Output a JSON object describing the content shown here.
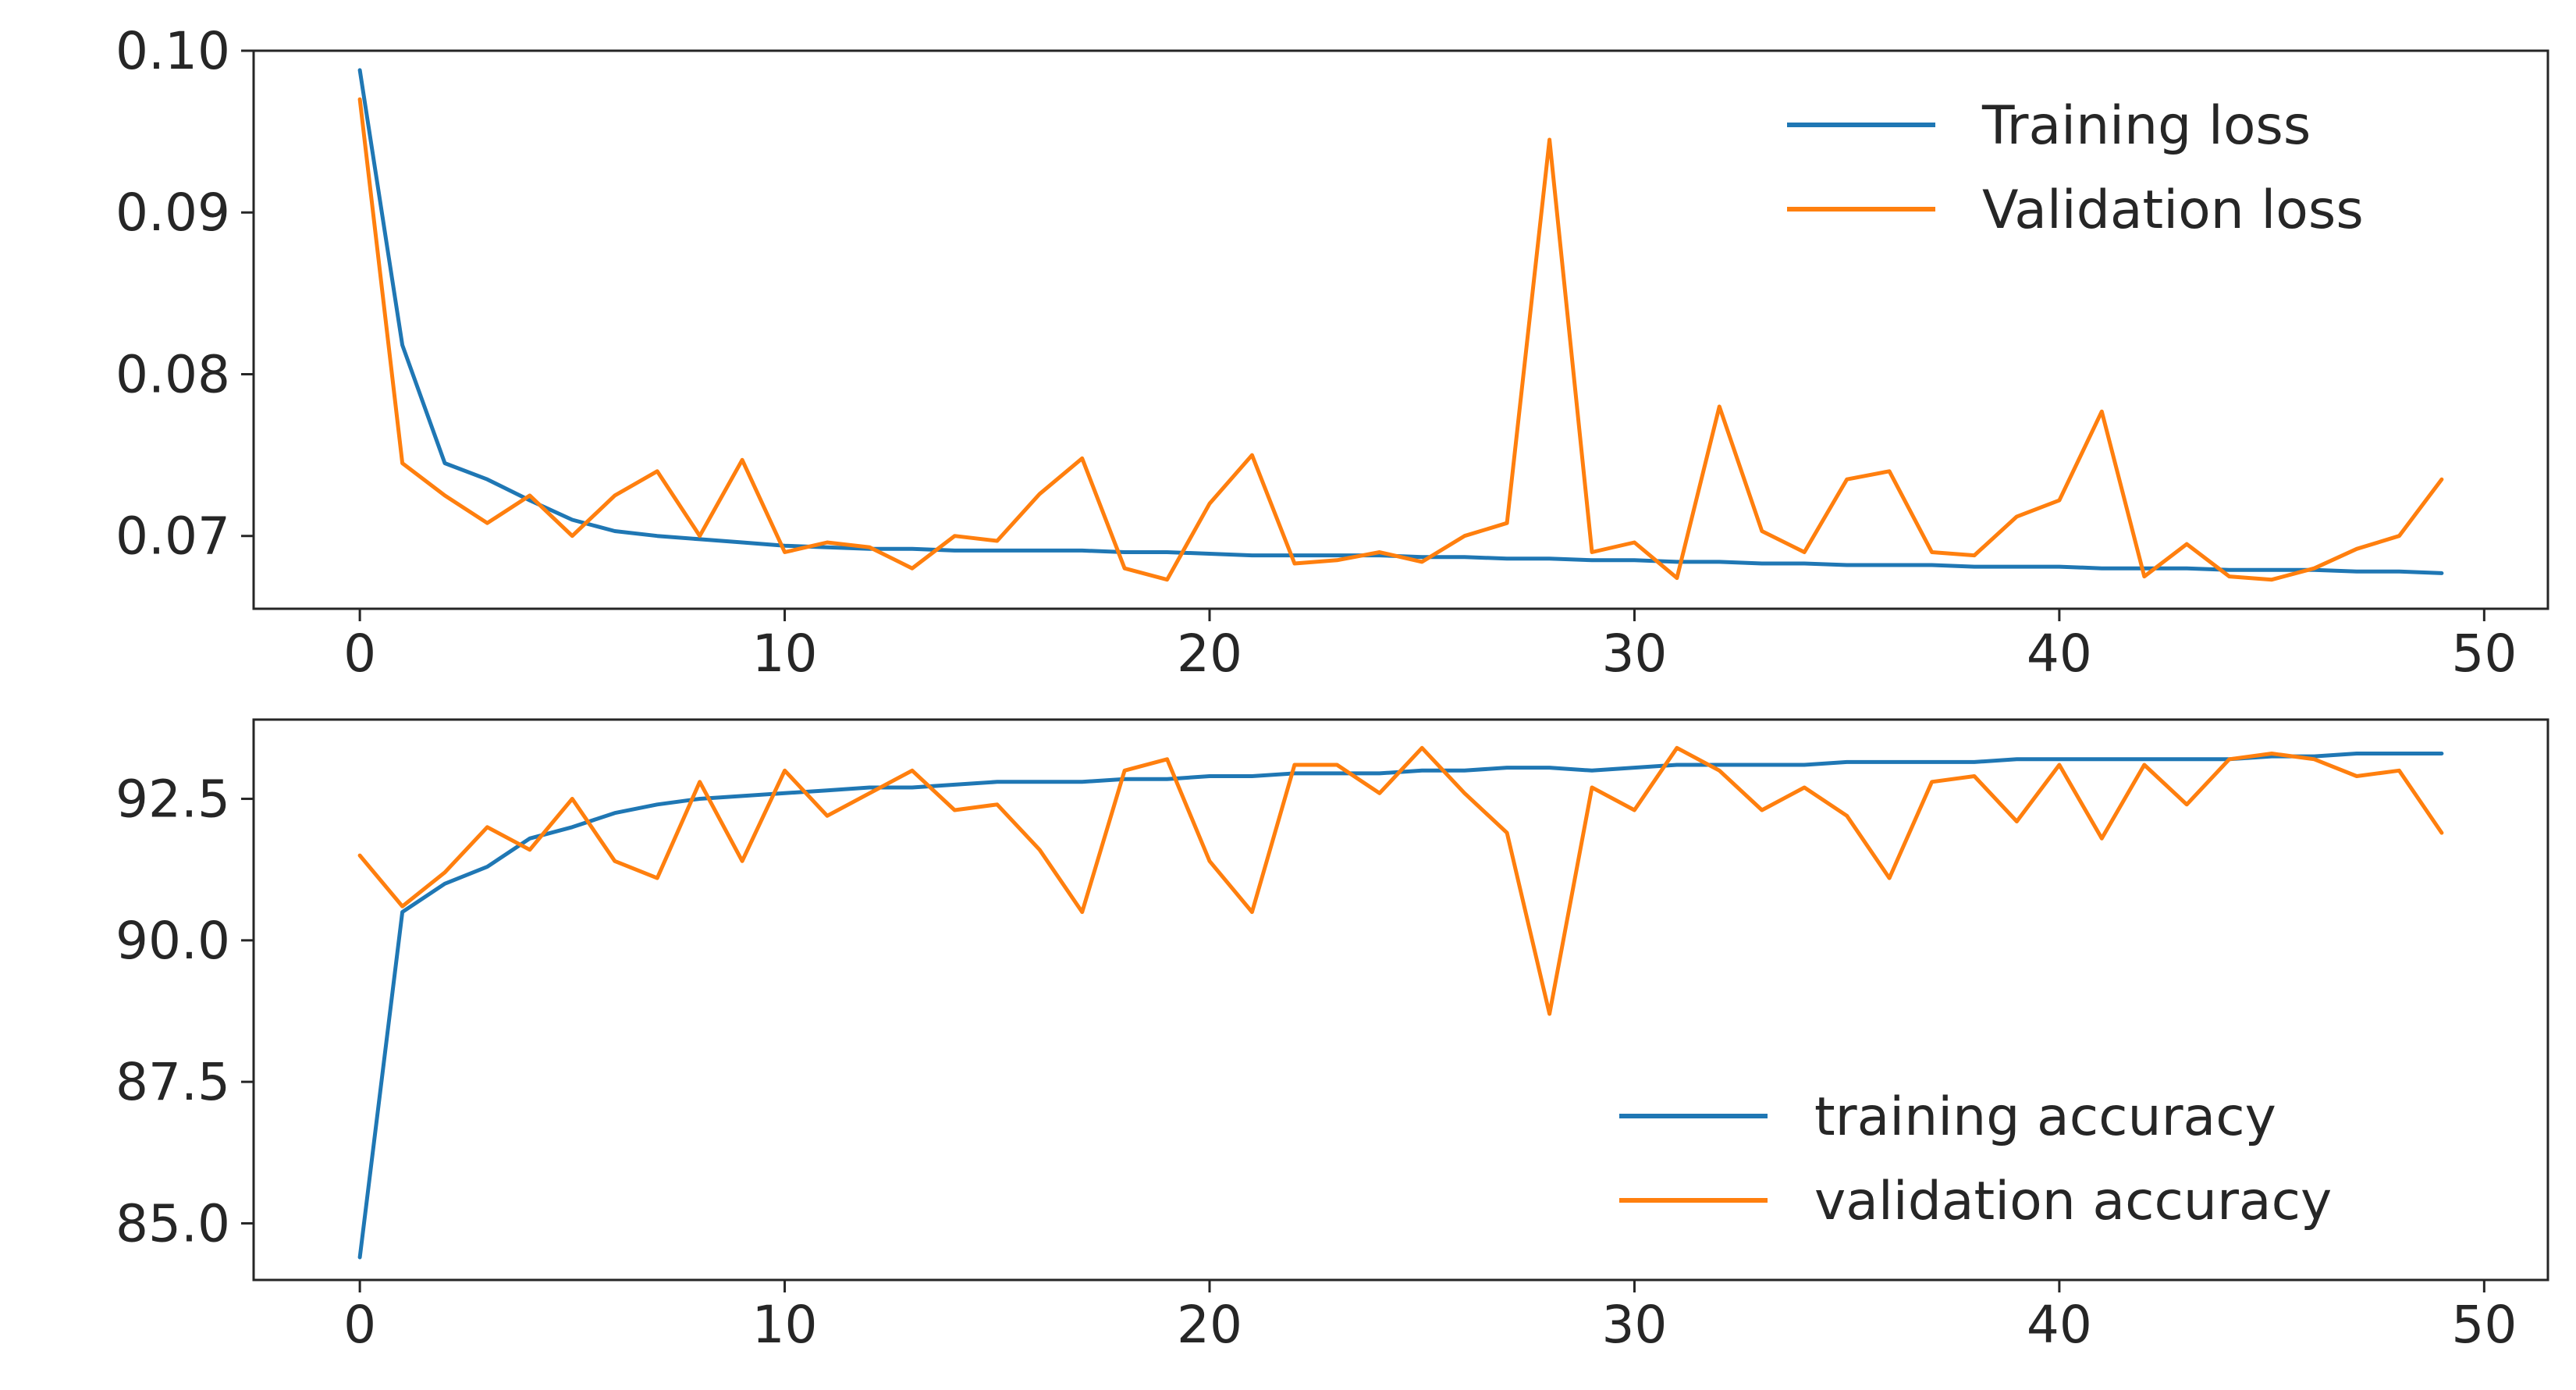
{
  "colors": {
    "training": "#1f77b4",
    "validation": "#ff7f0e",
    "axes": "#262626",
    "background": "#ffffff"
  },
  "chart_data": [
    {
      "type": "line",
      "title": "",
      "xlabel": "",
      "ylabel": "",
      "xlim": [
        -2.5,
        51.5
      ],
      "ylim": [
        0.0655,
        0.1
      ],
      "xticks": [
        0,
        10,
        20,
        30,
        40,
        50
      ],
      "yticks": [
        0.07,
        0.08,
        0.09,
        0.1
      ],
      "ytick_labels": [
        "0.07",
        "0.08",
        "0.09",
        "0.10"
      ],
      "grid": false,
      "legend_position": "upper right",
      "x": [
        0,
        1,
        2,
        3,
        4,
        5,
        6,
        7,
        8,
        9,
        10,
        11,
        12,
        13,
        14,
        15,
        16,
        17,
        18,
        19,
        20,
        21,
        22,
        23,
        24,
        25,
        26,
        27,
        28,
        29,
        30,
        31,
        32,
        33,
        34,
        35,
        36,
        37,
        38,
        39,
        40,
        41,
        42,
        43,
        44,
        45,
        46,
        47,
        48,
        49
      ],
      "series": [
        {
          "name": "Training loss",
          "color": "#1f77b4",
          "values": [
            0.0988,
            0.0818,
            0.0745,
            0.0735,
            0.0722,
            0.071,
            0.0703,
            0.07,
            0.0698,
            0.0696,
            0.0694,
            0.0693,
            0.0692,
            0.0692,
            0.0691,
            0.0691,
            0.0691,
            0.0691,
            0.069,
            0.069,
            0.0689,
            0.0688,
            0.0688,
            0.0688,
            0.0688,
            0.0687,
            0.0687,
            0.0686,
            0.0686,
            0.0685,
            0.0685,
            0.0684,
            0.0684,
            0.0683,
            0.0683,
            0.0682,
            0.0682,
            0.0682,
            0.0681,
            0.0681,
            0.0681,
            0.068,
            0.068,
            0.068,
            0.0679,
            0.0679,
            0.0679,
            0.0678,
            0.0678,
            0.0677
          ]
        },
        {
          "name": "Validation loss",
          "color": "#ff7f0e",
          "values": [
            0.097,
            0.0745,
            0.0725,
            0.0708,
            0.0725,
            0.07,
            0.0725,
            0.074,
            0.07,
            0.0747,
            0.069,
            0.0696,
            0.0693,
            0.068,
            0.07,
            0.0697,
            0.0726,
            0.0748,
            0.068,
            0.0673,
            0.072,
            0.075,
            0.0683,
            0.0685,
            0.069,
            0.0684,
            0.07,
            0.0708,
            0.0945,
            0.069,
            0.0696,
            0.0674,
            0.078,
            0.0703,
            0.069,
            0.0735,
            0.074,
            0.069,
            0.0688,
            0.0712,
            0.0722,
            0.0777,
            0.0675,
            0.0695,
            0.0675,
            0.0673,
            0.068,
            0.0692,
            0.07,
            0.0735
          ]
        }
      ]
    },
    {
      "type": "line",
      "title": "",
      "xlabel": "",
      "ylabel": "",
      "xlim": [
        -2.5,
        51.5
      ],
      "ylim": [
        84.0,
        93.9
      ],
      "xticks": [
        0,
        10,
        20,
        30,
        40,
        50
      ],
      "yticks": [
        85.0,
        87.5,
        90.0,
        92.5
      ],
      "ytick_labels": [
        "85.0",
        "87.5",
        "90.0",
        "92.5"
      ],
      "grid": false,
      "legend_position": "lower right",
      "x": [
        0,
        1,
        2,
        3,
        4,
        5,
        6,
        7,
        8,
        9,
        10,
        11,
        12,
        13,
        14,
        15,
        16,
        17,
        18,
        19,
        20,
        21,
        22,
        23,
        24,
        25,
        26,
        27,
        28,
        29,
        30,
        31,
        32,
        33,
        34,
        35,
        36,
        37,
        38,
        39,
        40,
        41,
        42,
        43,
        44,
        45,
        46,
        47,
        48,
        49
      ],
      "series": [
        {
          "name": "training accuracy",
          "color": "#1f77b4",
          "values": [
            84.4,
            90.5,
            91.0,
            91.3,
            91.8,
            92.0,
            92.25,
            92.4,
            92.5,
            92.55,
            92.6,
            92.65,
            92.7,
            92.7,
            92.75,
            92.8,
            92.8,
            92.8,
            92.85,
            92.85,
            92.9,
            92.9,
            92.95,
            92.95,
            92.95,
            93.0,
            93.0,
            93.05,
            93.05,
            93.0,
            93.05,
            93.1,
            93.1,
            93.1,
            93.1,
            93.15,
            93.15,
            93.15,
            93.15,
            93.2,
            93.2,
            93.2,
            93.2,
            93.2,
            93.2,
            93.25,
            93.25,
            93.3,
            93.3,
            93.3
          ]
        },
        {
          "name": "validation accuracy",
          "color": "#ff7f0e",
          "values": [
            91.5,
            90.6,
            91.2,
            92.0,
            91.6,
            92.5,
            91.4,
            91.1,
            92.8,
            91.4,
            93.0,
            92.2,
            92.6,
            93.0,
            92.3,
            92.4,
            91.6,
            90.5,
            93.0,
            93.2,
            91.4,
            90.5,
            93.1,
            93.1,
            92.6,
            93.4,
            92.6,
            91.9,
            88.7,
            92.7,
            92.3,
            93.4,
            93.0,
            92.3,
            92.7,
            92.2,
            91.1,
            92.8,
            92.9,
            92.1,
            93.1,
            91.8,
            93.1,
            92.4,
            93.2,
            93.3,
            93.2,
            92.9,
            93.0,
            91.9
          ]
        }
      ]
    }
  ]
}
